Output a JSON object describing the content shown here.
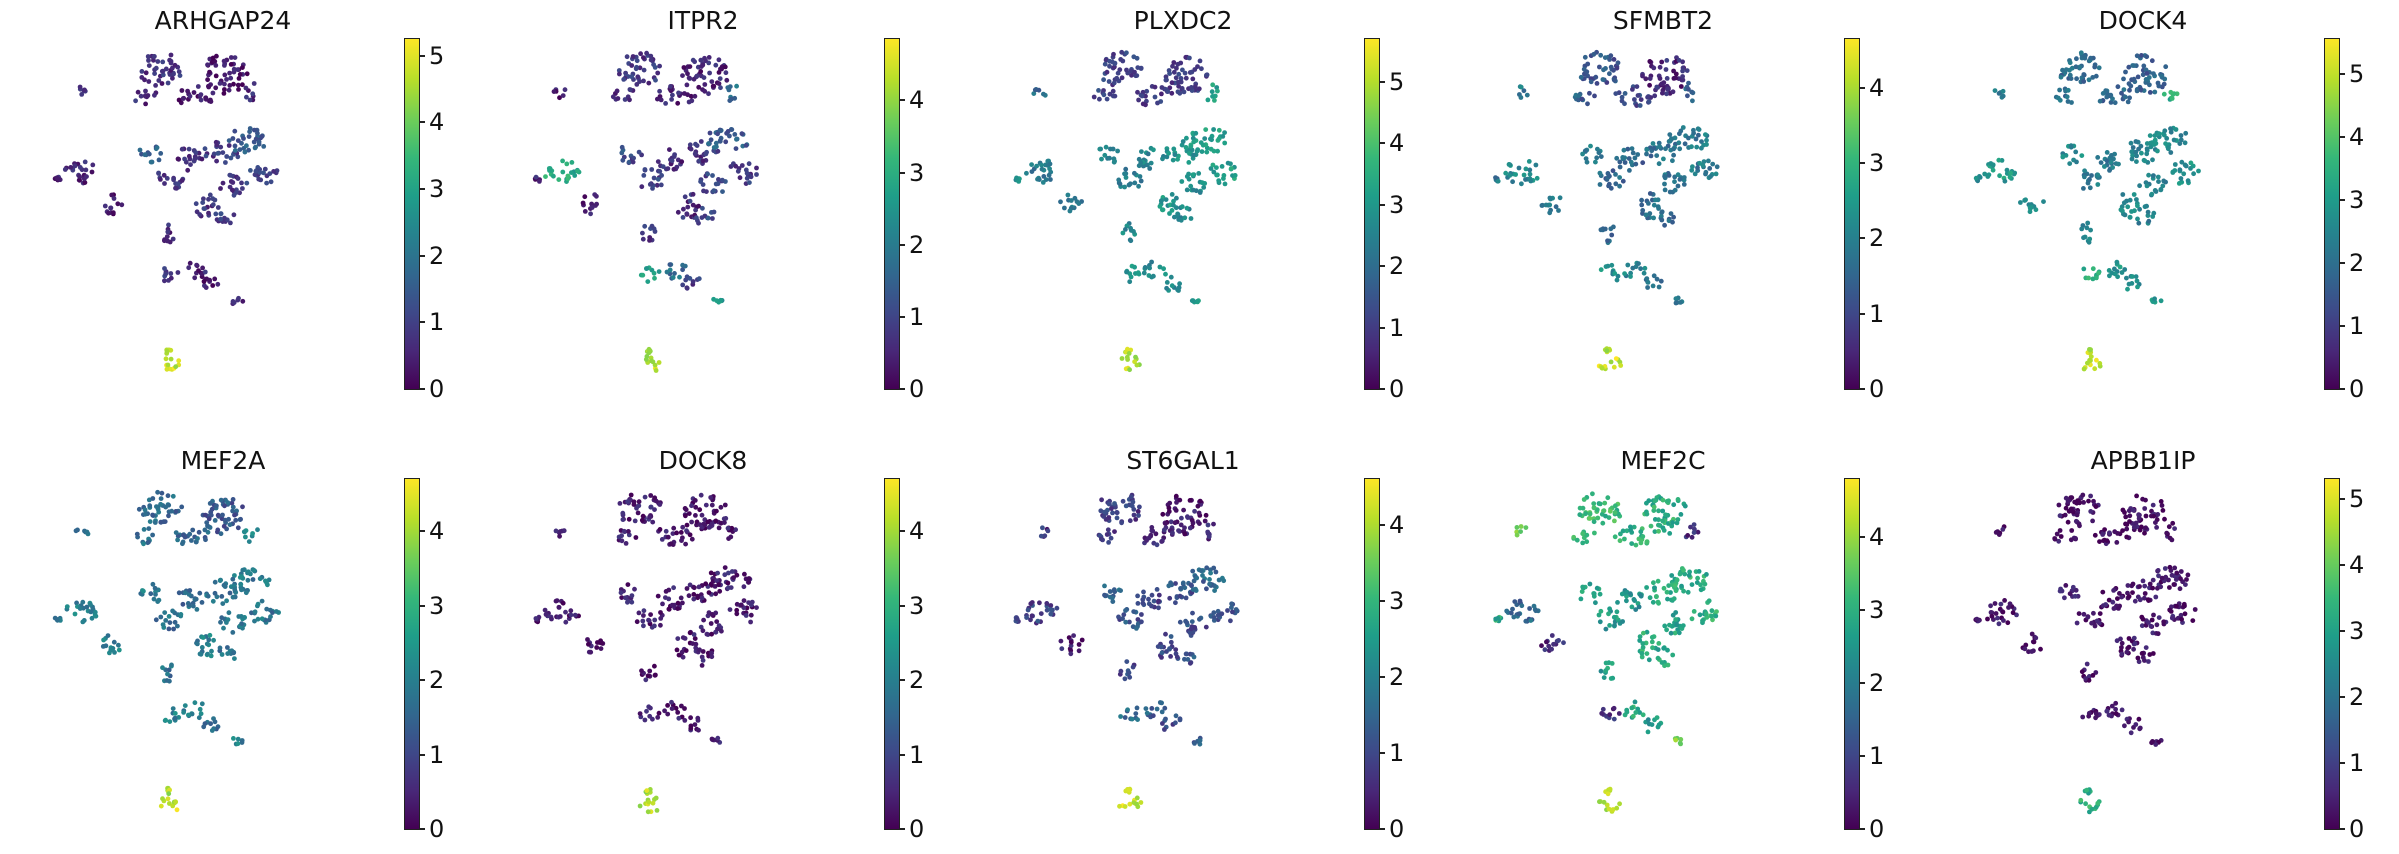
{
  "chart_data": [
    {
      "type": "scatter",
      "title": "ARHGAP24",
      "colormap": "viridis",
      "color_range": [
        0,
        5.25
      ],
      "colorbar_ticks": [
        0,
        1,
        2,
        3,
        4,
        5
      ],
      "cluster_values": [
        0.7,
        0.3,
        0.6,
        0.3,
        0.9,
        0.5,
        0.6,
        0.3,
        1.6,
        0.8,
        0.6,
        0.9,
        1.5,
        1.0,
        0.9,
        0.8,
        1.0,
        0.6,
        0.8,
        0.5,
        0.4,
        4.8,
        4.6,
        0.6,
        0.5
      ]
    },
    {
      "type": "scatter",
      "title": "ITPR2",
      "colormap": "viridis",
      "color_range": [
        0,
        4.85
      ],
      "colorbar_ticks": [
        0,
        1,
        2,
        3,
        4
      ],
      "cluster_values": [
        0.8,
        0.5,
        0.7,
        0.5,
        0.4,
        2.9,
        1.7,
        0.3,
        1.1,
        0.9,
        0.6,
        0.7,
        1.4,
        0.8,
        1.0,
        0.6,
        1.0,
        0.8,
        2.8,
        1.7,
        0.8,
        4.4,
        4.2,
        2.6,
        0.4
      ]
    },
    {
      "type": "scatter",
      "title": "PLXDC2",
      "colormap": "viridis",
      "color_range": [
        0,
        5.7
      ],
      "colorbar_ticks": [
        0,
        1,
        2,
        3,
        4,
        5
      ],
      "cluster_values": [
        1.1,
        1.0,
        1.2,
        1.0,
        2.0,
        2.3,
        3.2,
        2.4,
        2.7,
        2.4,
        2.6,
        2.9,
        3.1,
        3.2,
        2.8,
        3.0,
        2.7,
        2.7,
        3.0,
        2.7,
        2.6,
        5.1,
        5.0,
        3.0,
        2.8
      ]
    },
    {
      "type": "scatter",
      "title": "SFMBT2",
      "colormap": "viridis",
      "color_range": [
        0,
        4.65
      ],
      "colorbar_ticks": [
        0,
        1,
        2,
        3,
        4
      ],
      "cluster_values": [
        1.2,
        0.5,
        1.4,
        1.0,
        1.9,
        2.2,
        1.5,
        1.8,
        1.9,
        1.6,
        1.5,
        1.7,
        1.9,
        1.9,
        1.7,
        1.7,
        1.6,
        1.5,
        2.3,
        2.0,
        1.7,
        4.3,
        4.1,
        2.0,
        1.8
      ]
    },
    {
      "type": "scatter",
      "title": "DOCK4",
      "colormap": "viridis",
      "color_range": [
        0,
        5.55
      ],
      "colorbar_ticks": [
        0,
        1,
        2,
        3,
        4,
        5
      ],
      "cluster_values": [
        1.9,
        1.7,
        2.0,
        1.8,
        2.3,
        3.0,
        3.4,
        2.8,
        2.6,
        2.3,
        2.2,
        2.5,
        2.6,
        2.8,
        2.5,
        2.7,
        2.4,
        2.5,
        3.4,
        2.8,
        2.6,
        5.2,
        5.0,
        3.0,
        2.7
      ]
    },
    {
      "type": "scatter",
      "title": "MEF2A",
      "colormap": "viridis",
      "color_range": [
        0,
        4.7
      ],
      "colorbar_ticks": [
        0,
        1,
        2,
        3,
        4
      ],
      "cluster_values": [
        1.6,
        1.3,
        1.8,
        1.5,
        1.9,
        2.0,
        2.4,
        2.0,
        1.9,
        1.7,
        1.6,
        1.8,
        1.9,
        1.8,
        1.9,
        2.0,
        1.8,
        1.8,
        2.0,
        1.9,
        1.7,
        4.3,
        4.2,
        2.0,
        1.8
      ]
    },
    {
      "type": "scatter",
      "title": "DOCK8",
      "colormap": "viridis",
      "color_range": [
        0,
        4.7
      ],
      "colorbar_ticks": [
        0,
        1,
        2,
        3,
        4
      ],
      "cluster_values": [
        0.4,
        0.2,
        0.4,
        0.3,
        0.3,
        0.3,
        0.3,
        0.2,
        0.4,
        0.3,
        0.3,
        0.3,
        0.4,
        0.4,
        0.3,
        0.3,
        0.3,
        0.3,
        0.3,
        0.3,
        0.3,
        4.2,
        4.1,
        0.4,
        0.3
      ]
    },
    {
      "type": "scatter",
      "title": "ST6GAL1",
      "colormap": "viridis",
      "color_range": [
        0,
        4.6
      ],
      "colorbar_ticks": [
        0,
        1,
        2,
        3,
        4
      ],
      "cluster_values": [
        0.8,
        0.3,
        0.9,
        0.5,
        0.7,
        0.9,
        0.5,
        0.4,
        1.5,
        1.2,
        0.9,
        1.2,
        1.5,
        1.1,
        1.1,
        1.0,
        1.2,
        1.0,
        1.6,
        1.4,
        1.1,
        4.2,
        4.0,
        1.3,
        0.9
      ]
    },
    {
      "type": "scatter",
      "title": "MEF2C",
      "colormap": "viridis",
      "color_range": [
        0,
        4.8
      ],
      "colorbar_ticks": [
        0,
        1,
        2,
        3,
        4
      ],
      "cluster_values": [
        3.2,
        3.0,
        3.3,
        3.0,
        3.9,
        1.6,
        0.6,
        0.5,
        2.8,
        2.6,
        2.5,
        2.9,
        3.0,
        3.0,
        2.8,
        3.0,
        2.9,
        2.7,
        0.6,
        2.9,
        2.5,
        4.3,
        4.3,
        3.8,
        2.9
      ]
    },
    {
      "type": "scatter",
      "title": "APBB1IP",
      "colormap": "viridis",
      "color_range": [
        0,
        5.3
      ],
      "colorbar_ticks": [
        0,
        1,
        2,
        3,
        4,
        5
      ],
      "cluster_values": [
        0.3,
        0.2,
        0.3,
        0.2,
        0.3,
        0.3,
        0.3,
        0.2,
        0.4,
        0.3,
        0.3,
        0.3,
        0.4,
        0.3,
        0.3,
        0.3,
        0.3,
        0.3,
        0.3,
        0.3,
        0.3,
        3.4,
        3.3,
        0.3,
        0.3
      ]
    }
  ]
}
